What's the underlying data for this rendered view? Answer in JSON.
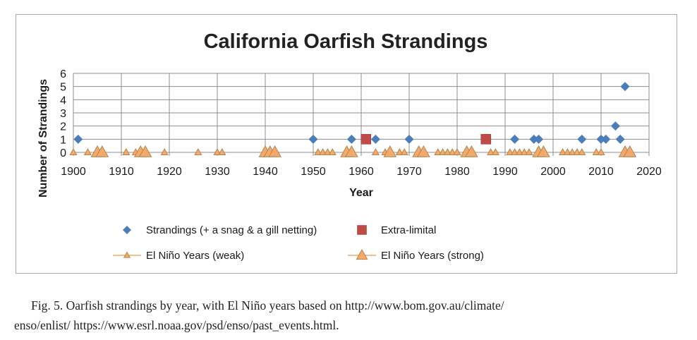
{
  "chart_data": {
    "type": "scatter",
    "title": "California Oarfish Strandings",
    "xlabel": "Year",
    "ylabel": "Number of Strandings",
    "xlim": [
      1900,
      2020
    ],
    "ylim": [
      0,
      6
    ],
    "xticks": [
      1900,
      1910,
      1920,
      1930,
      1940,
      1950,
      1960,
      1970,
      1980,
      1990,
      2000,
      2010,
      2020
    ],
    "yticks": [
      0,
      1,
      2,
      3,
      4,
      5,
      6
    ],
    "grid": true,
    "legend_position": "bottom",
    "series": [
      {
        "name": "Strandings (+ a snag & a gill netting)",
        "marker": "diamond",
        "color": "#4a7ebb",
        "points": [
          [
            1901,
            1
          ],
          [
            1950,
            1
          ],
          [
            1958,
            1
          ],
          [
            1963,
            1
          ],
          [
            1970,
            1
          ],
          [
            1992,
            1
          ],
          [
            1996,
            1
          ],
          [
            1997,
            1
          ],
          [
            2006,
            1
          ],
          [
            2010,
            1
          ],
          [
            2011,
            1
          ],
          [
            2013,
            2
          ],
          [
            2014,
            1
          ],
          [
            2015,
            5
          ]
        ]
      },
      {
        "name": "Extra-limital",
        "marker": "square",
        "color": "#be4b48",
        "points": [
          [
            1961,
            1
          ],
          [
            1986,
            1
          ]
        ]
      },
      {
        "name": "El Niño Years (weak)",
        "marker": "small-triangle",
        "color": "#f2a96b",
        "points": [
          [
            1900,
            0
          ],
          [
            1903,
            0
          ],
          [
            1911,
            0
          ],
          [
            1913,
            0
          ],
          [
            1919,
            0
          ],
          [
            1926,
            0
          ],
          [
            1930,
            0
          ],
          [
            1931,
            0
          ],
          [
            1951,
            0
          ],
          [
            1952,
            0
          ],
          [
            1953,
            0
          ],
          [
            1954,
            0
          ],
          [
            1963,
            0
          ],
          [
            1965,
            0
          ],
          [
            1968,
            0
          ],
          [
            1969,
            0
          ],
          [
            1976,
            0
          ],
          [
            1977,
            0
          ],
          [
            1978,
            0
          ],
          [
            1979,
            0
          ],
          [
            1980,
            0
          ],
          [
            1987,
            0
          ],
          [
            1988,
            0
          ],
          [
            1991,
            0
          ],
          [
            1992,
            0
          ],
          [
            1993,
            0
          ],
          [
            1994,
            0
          ],
          [
            1995,
            0
          ],
          [
            2002,
            0
          ],
          [
            2003,
            0
          ],
          [
            2004,
            0
          ],
          [
            2005,
            0
          ],
          [
            2006,
            0
          ],
          [
            2009,
            0
          ],
          [
            2010,
            0
          ]
        ]
      },
      {
        "name": "El Niño Years (strong)",
        "marker": "triangle",
        "color": "#f2a96b",
        "points": [
          [
            1905,
            0
          ],
          [
            1906,
            0
          ],
          [
            1914,
            0
          ],
          [
            1915,
            0
          ],
          [
            1940,
            0
          ],
          [
            1941,
            0
          ],
          [
            1942,
            0
          ],
          [
            1957,
            0
          ],
          [
            1958,
            0
          ],
          [
            1966,
            0
          ],
          [
            1972,
            0
          ],
          [
            1973,
            0
          ],
          [
            1982,
            0
          ],
          [
            1983,
            0
          ],
          [
            1997,
            0
          ],
          [
            1998,
            0
          ],
          [
            2015,
            0
          ],
          [
            2016,
            0
          ]
        ]
      }
    ]
  },
  "caption": {
    "line1": "Fig. 5.   Oarfish strandings by year, with El Niño years based on http://www.bom.gov.au/climate/",
    "line2": "enso/enlist/ https://www.esrl.noaa.gov/psd/enso/past_events.html."
  },
  "colors": {
    "gridline": "#8c8c8c",
    "axis_text": "#1a1a1a",
    "marker_outline": "#b8864a"
  }
}
